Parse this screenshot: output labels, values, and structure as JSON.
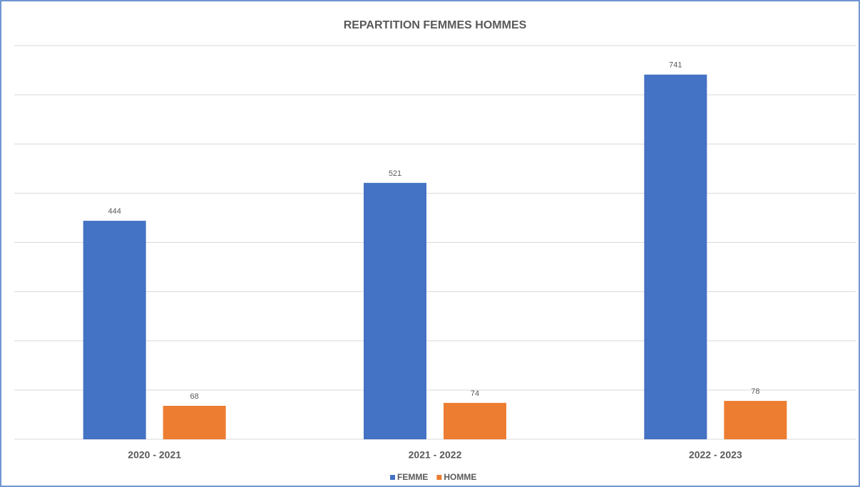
{
  "chart_data": {
    "type": "bar",
    "title": "REPARTITION FEMMES HOMMES",
    "categories": [
      "2020 - 2021",
      "2021 - 2022",
      "2022 - 2023"
    ],
    "series": [
      {
        "name": "FEMME",
        "color": "#4472c4",
        "values": [
          444,
          521,
          741
        ]
      },
      {
        "name": "HOMME",
        "color": "#ed7d31",
        "values": [
          68,
          74,
          78
        ]
      }
    ],
    "ylim": [
      0,
      800
    ],
    "yticks": [
      0,
      100,
      200,
      300,
      400,
      500,
      600,
      700,
      800
    ],
    "grid": true
  }
}
